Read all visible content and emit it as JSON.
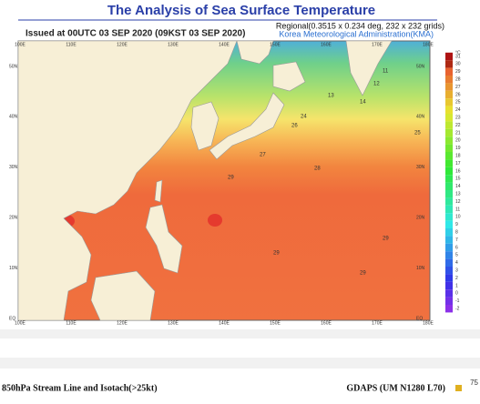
{
  "header": {
    "title": "The Analysis of Sea Surface Temperature",
    "issued": "Issued at    00UTC 03 SEP 2020 (09KST 03 SEP 2020)",
    "regional": "Regional(0.3515 x 0.234 deg, 232 x 232 grids)",
    "agency": "Korea Meteorological Administration(KMA)"
  },
  "map": {
    "lon_labels": [
      "100E",
      "110E",
      "120E",
      "130E",
      "140E",
      "150E",
      "160E",
      "170E",
      "180E"
    ],
    "lat_labels": [
      "EQ",
      "10N",
      "20N",
      "30N",
      "40N",
      "50N"
    ],
    "contour_labels": [
      "11",
      "12",
      "13",
      "14",
      "24",
      "25",
      "26",
      "27",
      "28",
      "29",
      "29",
      "29",
      "29"
    ]
  },
  "colorbar": {
    "unit": "°C",
    "labels": [
      "31",
      "30",
      "29",
      "28",
      "27",
      "26",
      "25",
      "24",
      "23",
      "22",
      "21",
      "20",
      "19",
      "18",
      "17",
      "16",
      "15",
      "14",
      "13",
      "12",
      "11",
      "10",
      "9",
      "8",
      "7",
      "6",
      "5",
      "4",
      "3",
      "2",
      "1",
      "0",
      "-1",
      "-2"
    ]
  },
  "footer": {
    "left": "850hPa Stream Line and Isotach(>25kt)",
    "right": "GDAPS (UM N1280 L70)",
    "page": "75"
  }
}
